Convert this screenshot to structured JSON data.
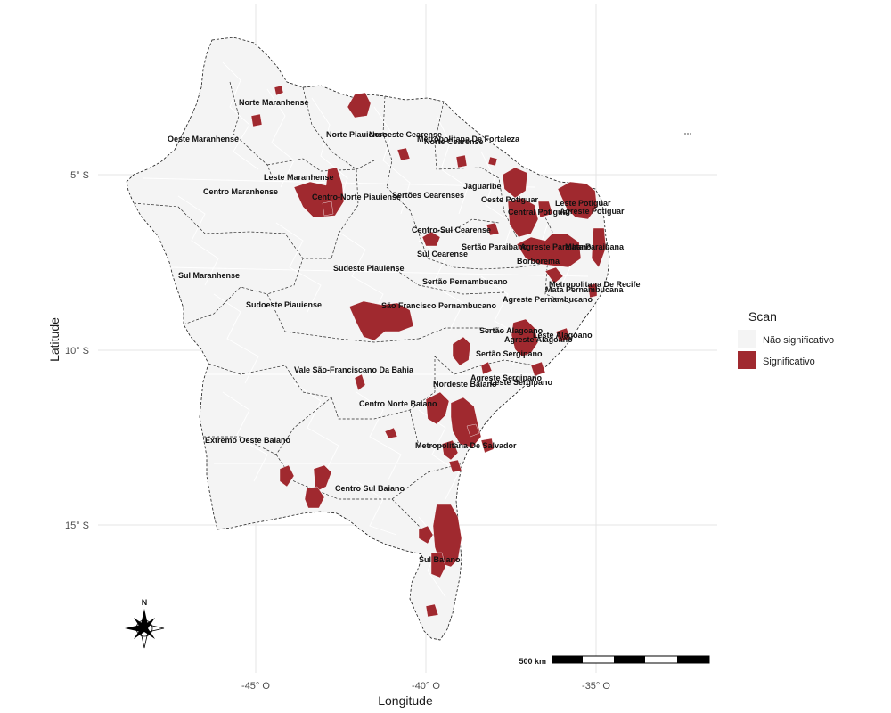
{
  "axes": {
    "xlabel": "Longitude",
    "ylabel": "Latitude",
    "x_ticks": [
      "-45° O",
      "-40° O",
      "-35° O"
    ],
    "y_ticks": [
      "5° S",
      "10° S",
      "15° S"
    ]
  },
  "legend": {
    "title": "Scan",
    "items": [
      {
        "label": "Não significativo",
        "color": "#f4f4f4"
      },
      {
        "label": "Significativo",
        "color": "#a0292f"
      }
    ]
  },
  "scale_bar": {
    "label": "500 km"
  },
  "north_arrow": {
    "label": "N",
    "icon": "compass-rose-icon"
  },
  "mesoregion_labels": [
    "Norte Maranhense",
    "Oeste Maranhense",
    "Norte Piauiense",
    "Noroeste Cearense",
    "Metropolitana De Fortaleza",
    "Norte Cearense",
    "Leste Maranhense",
    "Centro Maranhense",
    "Centro-Norte Piauiense",
    "Sertões Cearenses",
    "Jaguaribe",
    "Oeste Potiguar",
    "Leste Potiguar",
    "Central Potiguar",
    "Agreste Potiguar",
    "Centro-Sul Cearense",
    "Sertão Paraibano",
    "Agreste Paraibano",
    "Mata Paraibana",
    "Borborema",
    "Sul Cearense",
    "Sudeste Piauiense",
    "Sul Maranhense",
    "Sertão Pernambucano",
    "Metropolitana De Recife",
    "Mata Pernambucana",
    "Agreste Pernambucano",
    "Sudoeste Piauiense",
    "São Francisco Pernambucano",
    "Sertão Alagoano",
    "Leste Alagoano",
    "Agreste Alagoano",
    "Sertão Sergipano",
    "Vale São-Franciscano Da Bahia",
    "Agreste Sergipano",
    "Leste Sergipano",
    "Nordeste Baiano",
    "Centro Norte Baiano",
    "Extremo Oeste Baiano",
    "Metropolitana De Salvador",
    "Centro Sul Baiano",
    "Sul Baiano"
  ]
}
